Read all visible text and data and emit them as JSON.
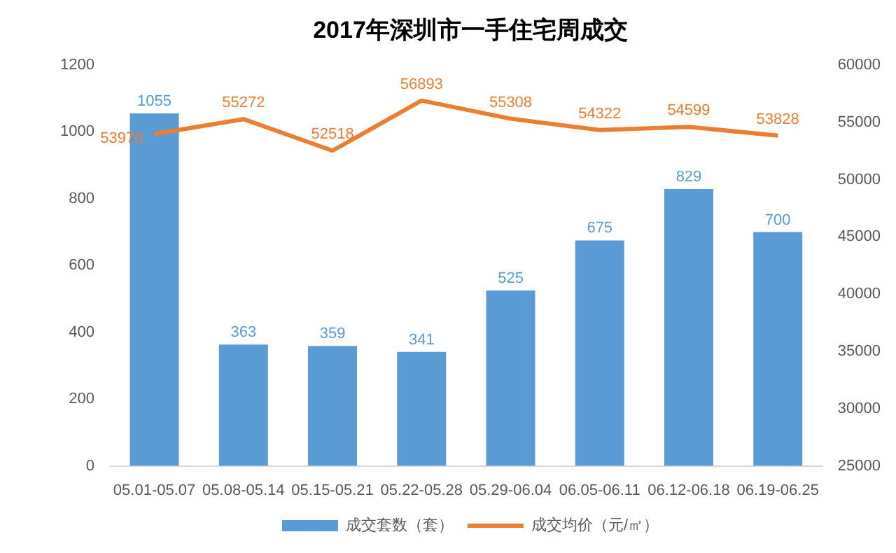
{
  "chart_data": {
    "type": "bar",
    "title": "2017年深圳市一手住宅周成交",
    "categories": [
      "05.01-05.07",
      "05.08-05.14",
      "05.15-05.21",
      "05.22-05.28",
      "05.29-06.04",
      "06.05-06.11",
      "06.12-06.18",
      "06.19-06.25"
    ],
    "series": [
      {
        "name": "成交套数（套）",
        "color": "#5b9bd5",
        "values": [
          1055,
          363,
          359,
          341,
          525,
          675,
          829,
          700
        ]
      },
      {
        "name": "成交均价（元/㎡）",
        "type": "line",
        "axis": "y2",
        "color": "#ed7d31",
        "values": [
          53970,
          55272,
          52518,
          56893,
          55308,
          54322,
          54599,
          53828
        ]
      }
    ],
    "ylim": [
      0,
      1200
    ],
    "yticks": [
      0,
      200,
      400,
      600,
      800,
      1000,
      1200
    ],
    "y2lim": [
      25000,
      60000
    ],
    "y2ticks": [
      25000,
      30000,
      35000,
      40000,
      45000,
      50000,
      55000,
      60000
    ],
    "grid": false,
    "legend": "bottom",
    "data_labels": true,
    "marker": "none"
  }
}
